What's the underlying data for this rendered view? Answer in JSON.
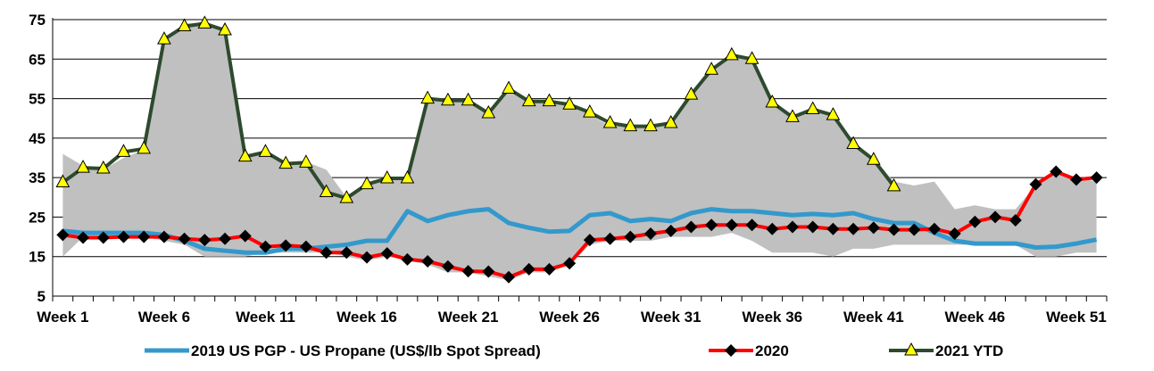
{
  "chart_data": {
    "type": "line",
    "x": [
      "Week 1",
      "Week 2",
      "Week 3",
      "Week 4",
      "Week 5",
      "Week 6",
      "Week 7",
      "Week 8",
      "Week 9",
      "Week 10",
      "Week 11",
      "Week 12",
      "Week 13",
      "Week 14",
      "Week 15",
      "Week 16",
      "Week 17",
      "Week 18",
      "Week 19",
      "Week 20",
      "Week 21",
      "Week 22",
      "Week 23",
      "Week 24",
      "Week 25",
      "Week 26",
      "Week 27",
      "Week 28",
      "Week 29",
      "Week 30",
      "Week 31",
      "Week 32",
      "Week 33",
      "Week 34",
      "Week 35",
      "Week 36",
      "Week 37",
      "Week 38",
      "Week 39",
      "Week 40",
      "Week 41",
      "Week 42",
      "Week 43",
      "Week 44",
      "Week 45",
      "Week 46",
      "Week 47",
      "Week 48",
      "Week 49",
      "Week 50",
      "Week 51",
      "Week 52"
    ],
    "x_tick_labels": [
      "Week 1",
      "Week 6",
      "Week 11",
      "Week 16",
      "Week 21",
      "Week 26",
      "Week 31",
      "Week 36",
      "Week 41",
      "Week 46",
      "Week 51"
    ],
    "ylim": [
      5,
      75
    ],
    "y_ticks": [
      5,
      15,
      25,
      35,
      45,
      55,
      65,
      75
    ],
    "grid": "horizontal",
    "legend_position": "bottom",
    "range_band": {
      "color": "#c0c0c0",
      "upper": [
        41,
        38,
        37,
        40,
        42,
        70,
        74,
        74,
        72,
        40,
        42,
        38,
        39,
        37,
        30,
        33,
        35,
        35,
        55,
        54,
        54,
        51,
        57,
        54,
        54,
        53,
        51,
        48,
        48,
        48,
        49,
        56,
        62,
        66,
        65,
        54,
        50,
        52,
        51,
        44,
        40,
        34,
        33,
        34,
        27,
        28,
        27,
        27,
        33,
        37,
        35,
        34
      ],
      "lower": [
        15,
        20,
        20,
        20,
        20,
        19,
        18,
        15,
        15,
        15,
        16,
        16,
        16,
        16,
        15,
        14,
        15,
        14,
        13,
        11,
        11,
        10,
        9,
        11,
        11,
        13,
        18,
        19,
        19,
        19,
        20,
        20,
        20,
        21,
        19,
        16,
        16,
        16,
        15,
        17,
        17,
        18,
        18,
        18,
        18,
        18,
        18,
        18,
        15,
        15,
        16,
        16
      ]
    },
    "series": [
      {
        "name": "2019 US PGP - US Propane (US$/lb Spot Spread)",
        "color": "#3399cc",
        "marker": "none",
        "values": [
          21.5,
          21,
          21,
          21,
          21,
          20.5,
          19,
          17,
          16.5,
          16,
          16,
          17,
          17,
          17.5,
          18,
          19,
          19,
          26.5,
          24,
          25.5,
          26.5,
          27,
          23.5,
          22.3,
          21.3,
          21.5,
          25.5,
          26,
          24,
          24.5,
          24,
          26,
          27,
          26.5,
          26.5,
          26,
          25.5,
          25.8,
          25.5,
          26,
          24.5,
          23.5,
          23.5,
          21,
          19,
          18.3,
          18.3,
          18.3,
          17.3,
          17.5,
          18.3,
          19.3
        ]
      },
      {
        "name": "2020",
        "color": "#ff0000",
        "marker": "diamond",
        "marker_color": "#000000",
        "values": [
          20.5,
          19.8,
          19.8,
          20,
          20,
          20,
          19.5,
          19.2,
          19.5,
          20.2,
          17.5,
          17.8,
          17.5,
          16,
          16,
          14.8,
          15.8,
          14.3,
          13.8,
          12.5,
          11.3,
          11.2,
          9.8,
          11.8,
          11.8,
          13.3,
          19.2,
          19.5,
          20,
          20.8,
          21.5,
          22.5,
          23,
          23,
          23,
          22,
          22.5,
          22.5,
          22,
          22,
          22.3,
          21.8,
          21.8,
          22,
          20.8,
          23.8,
          25,
          24.2,
          33.3,
          36.5,
          34.5,
          35
        ]
      },
      {
        "name": "2021 YTD",
        "color": "#2e4a2e",
        "marker": "triangle",
        "marker_color": "#ffff00",
        "values": [
          33.8,
          37.5,
          37.3,
          41.5,
          42.3,
          70,
          73.3,
          74,
          72.3,
          40.3,
          41.5,
          38.5,
          38.8,
          31.3,
          29.8,
          33.3,
          34.8,
          34.8,
          55,
          54.5,
          54.5,
          51.3,
          57.5,
          54.3,
          54.3,
          53.5,
          51.5,
          48.8,
          48,
          48,
          48.8,
          56,
          62.3,
          66,
          65,
          54,
          50.3,
          52.3,
          50.8,
          43.5,
          39.5,
          32.8,
          null,
          null,
          null,
          null,
          null,
          null,
          null,
          null,
          null,
          null
        ]
      }
    ]
  }
}
